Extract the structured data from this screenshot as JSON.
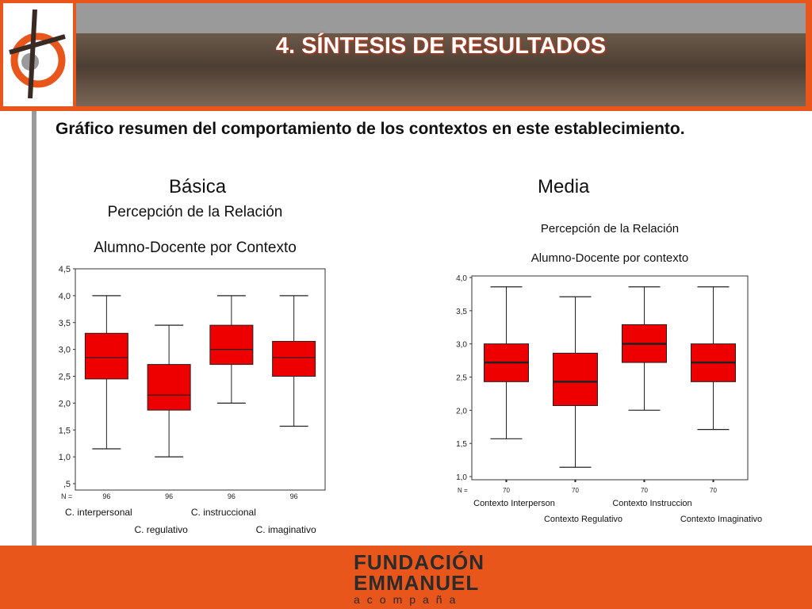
{
  "slide": {
    "title": "4. SÍNTESIS DE RESULTADOS",
    "heading": "Gráfico resumen del comportamiento de los contextos en este establecimiento.",
    "left_label": "Básica",
    "right_label": "Media",
    "footer": {
      "line1": "FUNDACIÓN",
      "line2": "EMMANUEL",
      "line3": "acompaña"
    }
  },
  "colors": {
    "orange": "#e8561c",
    "box_fill": "#ee0000"
  },
  "chart_data": [
    {
      "type": "boxplot",
      "title_line1": "Percepción de la Relación",
      "title_line2": "Alumno-Docente por Contexto",
      "ylim": [
        0.5,
        4.5
      ],
      "yticks": [
        "4,5",
        "4,0",
        "3,5",
        "3,0",
        "2,5",
        "2,0",
        "1,5",
        "1,0",
        ",5"
      ],
      "n_label": "N =",
      "categories": [
        "C. interpersonal",
        "C. regulativo",
        "C. instruccional",
        "C. imaginativo"
      ],
      "n": [
        "96",
        "96",
        "96",
        "96"
      ],
      "boxes": [
        {
          "min": 1.15,
          "q1": 2.45,
          "median": 2.85,
          "q3": 3.3,
          "max": 4.0
        },
        {
          "min": 1.0,
          "q1": 1.87,
          "median": 2.15,
          "q3": 2.72,
          "max": 3.45
        },
        {
          "min": 2.0,
          "q1": 2.72,
          "median": 3.0,
          "q3": 3.45,
          "max": 4.0
        },
        {
          "min": 1.57,
          "q1": 2.5,
          "median": 2.85,
          "q3": 3.15,
          "max": 4.0
        }
      ],
      "grid": false
    },
    {
      "type": "boxplot",
      "title_line1": "Percepción de la Relación",
      "title_line2": "Alumno-Docente por contexto",
      "ylim": [
        1.0,
        4.0
      ],
      "yticks": [
        "4,0",
        "3,5",
        "3,0",
        "2,5",
        "2,0",
        "1,5",
        "1,0"
      ],
      "n_label": "N =",
      "categories": [
        "Contexto Interperson",
        "Contexto Regulativo",
        "Contexto Instruccion",
        "Contexto Imaginativo"
      ],
      "n": [
        "70",
        "70",
        "70",
        "70"
      ],
      "boxes": [
        {
          "min": 1.57,
          "q1": 2.43,
          "median": 2.72,
          "q3": 3.0,
          "max": 3.86
        },
        {
          "min": 1.14,
          "q1": 2.07,
          "median": 2.43,
          "q3": 2.86,
          "max": 3.71
        },
        {
          "min": 2.0,
          "q1": 2.72,
          "median": 3.0,
          "q3": 3.29,
          "max": 3.86
        },
        {
          "min": 1.71,
          "q1": 2.43,
          "median": 2.72,
          "q3": 3.0,
          "max": 3.86
        }
      ],
      "grid": false
    }
  ]
}
